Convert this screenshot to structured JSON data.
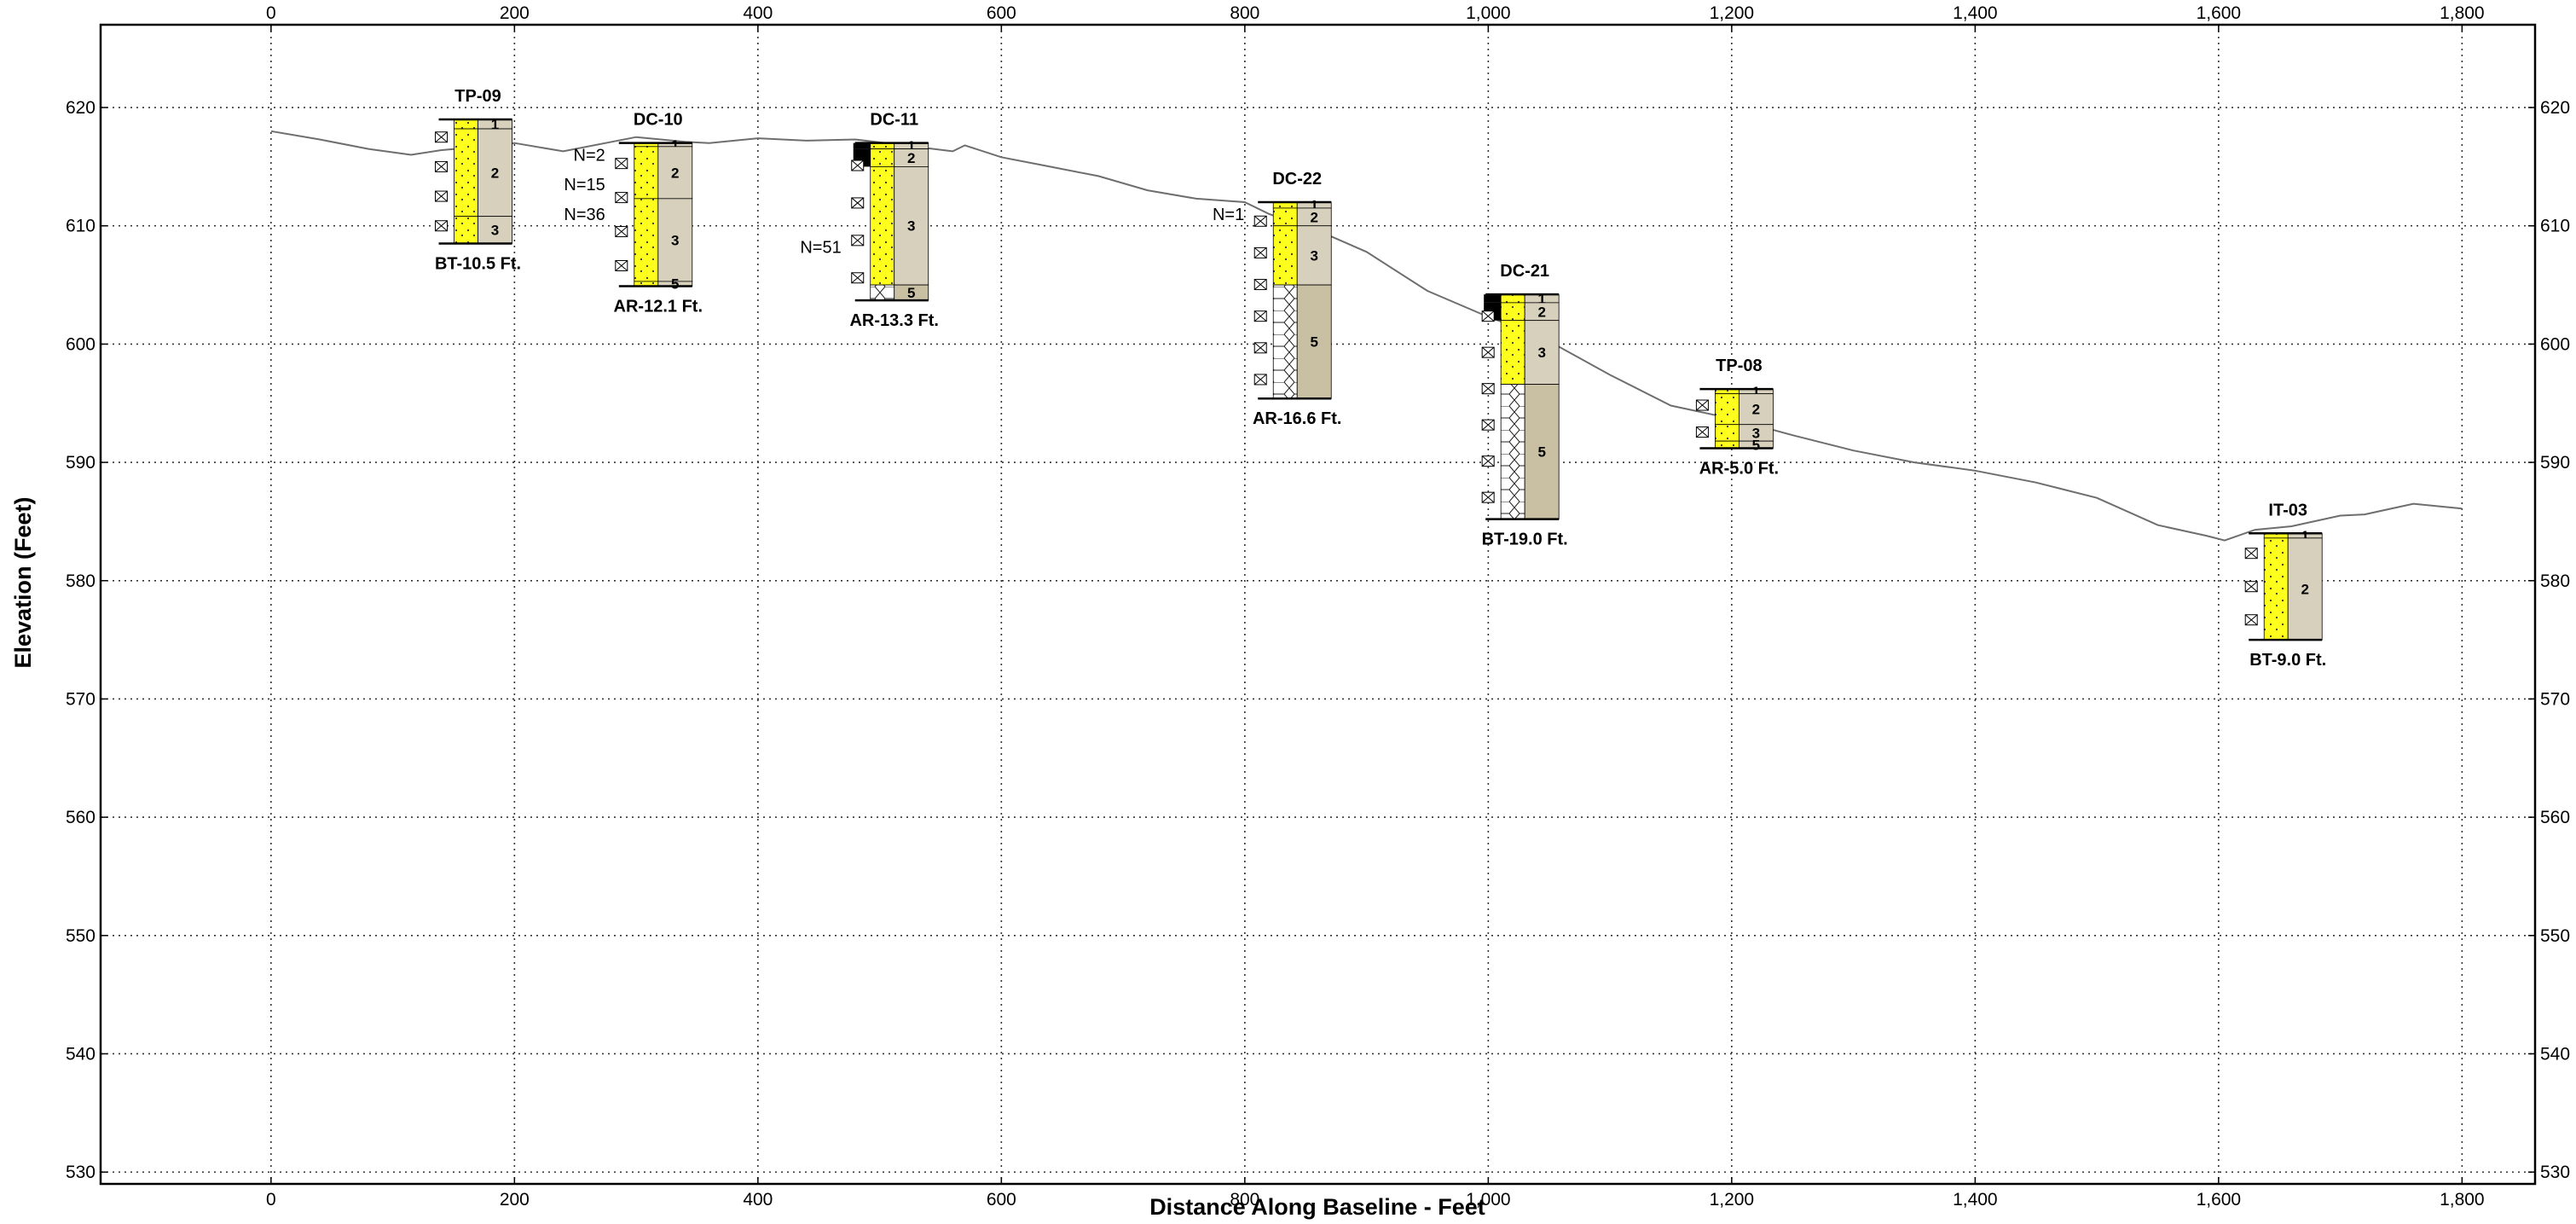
{
  "chart_data": {
    "type": "geologic-cross-section",
    "xlabel": "Distance Along Baseline - Feet",
    "ylabel": "Elevation  (Feet)",
    "xlim": [
      -140,
      1860
    ],
    "ylim": [
      529,
      627
    ],
    "x_ticks": [
      0,
      200,
      400,
      600,
      800,
      1000,
      1200,
      1400,
      1600,
      1800
    ],
    "x_tick_labels": [
      "0",
      "200",
      "400",
      "600",
      "800",
      "1,000",
      "1,200",
      "1,400",
      "1,600",
      "1,800"
    ],
    "y_ticks": [
      530,
      540,
      550,
      560,
      570,
      580,
      590,
      600,
      610,
      620
    ],
    "y_tick_labels": [
      "530",
      "540",
      "550",
      "560",
      "570",
      "580",
      "590",
      "600",
      "610",
      "620"
    ],
    "grid": true,
    "ground_surface": {
      "x": [
        0,
        40,
        80,
        115,
        140,
        175,
        200,
        240,
        300,
        340,
        360,
        400,
        440,
        480,
        520,
        560,
        570,
        600,
        640,
        680,
        720,
        760,
        800,
        820,
        860,
        900,
        950,
        1000,
        1040,
        1100,
        1150,
        1200,
        1250,
        1300,
        1350,
        1400,
        1450,
        1500,
        1550,
        1590,
        1605,
        1630,
        1660,
        1700,
        1720,
        1760,
        1800
      ],
      "y": [
        618,
        617.3,
        616.5,
        616,
        616.4,
        616.7,
        617,
        616.3,
        617.5,
        617.1,
        617,
        617.4,
        617.2,
        617.3,
        616.8,
        616.3,
        616.8,
        615.8,
        615,
        614.2,
        613,
        612.3,
        612,
        611,
        609.6,
        607.8,
        604.5,
        602.3,
        600.8,
        597.4,
        594.8,
        593.7,
        592.3,
        591,
        590,
        589.3,
        588.3,
        587,
        584.7,
        583.8,
        583.4,
        584.3,
        584.6,
        585.5,
        585.6,
        586.5,
        586.1
      ]
    },
    "borings": [
      {
        "name": "TP-09",
        "x": 170,
        "top": 619,
        "bottom": 608.5,
        "depth_label": "BT-10.5 Ft.",
        "breaks": [
          619,
          618.2,
          610.8,
          608.5
        ],
        "layers": [
          "1",
          "2",
          "3"
        ],
        "solid_cells": [],
        "hex_layer": -1,
        "n_values": []
      },
      {
        "name": "DC-10",
        "x": 318,
        "top": 617,
        "bottom": 604.9,
        "depth_label": "AR-12.1 Ft.",
        "breaks": [
          617,
          616.7,
          612.3,
          605.3,
          604.9
        ],
        "layers": [
          "1",
          "2",
          "3",
          "5"
        ],
        "solid_cells": [],
        "hex_layer": -1,
        "n_values": [
          {
            "text": "N=2",
            "elev": 616
          },
          {
            "text": "N=15",
            "elev": 613.5
          },
          {
            "text": "N=36",
            "elev": 611
          }
        ]
      },
      {
        "name": "DC-11",
        "x": 512,
        "top": 617,
        "bottom": 603.7,
        "depth_label": "AR-13.3 Ft.",
        "breaks": [
          617,
          616.5,
          615,
          605,
          603.7
        ],
        "layers": [
          "1",
          "2",
          "3",
          "5"
        ],
        "solid_cells": [
          0,
          1
        ],
        "hex_layer": 3,
        "n_values": [
          {
            "text": "N=51",
            "elev": 608.2
          }
        ]
      },
      {
        "name": "DC-22",
        "x": 843,
        "top": 612,
        "bottom": 595.4,
        "depth_label": "AR-16.6 Ft.",
        "breaks": [
          612,
          611.5,
          610,
          605,
          595.4
        ],
        "layers": [
          "1",
          "2",
          "3",
          "5"
        ],
        "solid_cells": [],
        "hex_layer": 3,
        "n_values": [
          {
            "text": "N=1",
            "elev": 611
          }
        ]
      },
      {
        "name": "DC-21",
        "x": 1030,
        "top": 604.2,
        "bottom": 585.2,
        "depth_label": "BT-19.0 Ft.",
        "breaks": [
          604.2,
          603.5,
          602,
          596.6,
          585.2
        ],
        "layers": [
          "1",
          "2",
          "3",
          "5"
        ],
        "solid_cells": [
          0,
          1
        ],
        "hex_layer": 3,
        "n_values": []
      },
      {
        "name": "TP-08",
        "x": 1206,
        "top": 596.2,
        "bottom": 591.2,
        "depth_label": "AR-5.0 Ft.",
        "breaks": [
          596.2,
          595.8,
          593.2,
          591.8,
          591.2
        ],
        "layers": [
          "1",
          "2",
          "3",
          "5"
        ],
        "solid_cells": [],
        "hex_layer": -1,
        "n_values": []
      },
      {
        "name": "IT-03",
        "x": 1657,
        "top": 584,
        "bottom": 575,
        "depth_label": "BT-9.0 Ft.",
        "breaks": [
          584,
          583.6,
          575
        ],
        "layers": [
          "1",
          "2"
        ],
        "solid_cells": [],
        "hex_layer": -1,
        "n_values": []
      }
    ]
  },
  "colors": {
    "sand_yellow": "#ffff1e",
    "layer_tan": "#d6d0bc",
    "layer_tan_dark": "#c9c0a4",
    "grid_gray": "#333333",
    "ground_line": "#6e6e6e",
    "solid_black": "#000000"
  }
}
